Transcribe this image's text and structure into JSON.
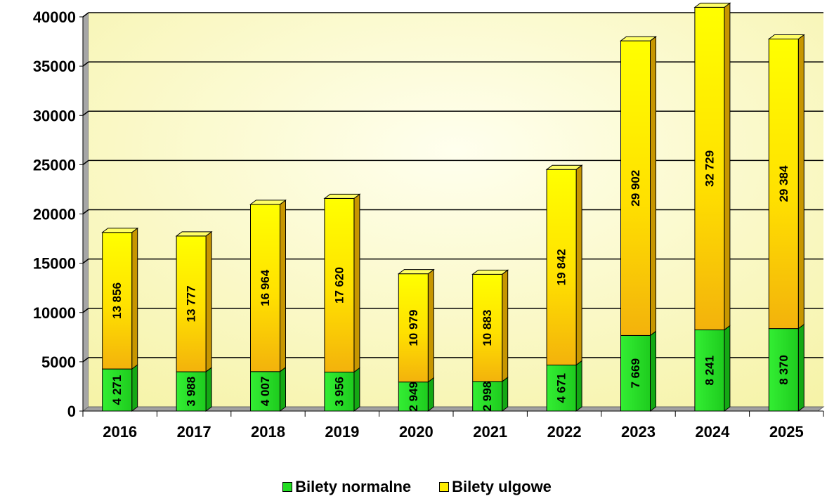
{
  "chart_data": {
    "type": "bar",
    "stacked": true,
    "categories": [
      "2016",
      "2017",
      "2018",
      "2019",
      "2020",
      "2021",
      "2022",
      "2023",
      "2024",
      "2025"
    ],
    "series": [
      {
        "name": "Bilety normalne",
        "color": "#22dd22",
        "values": [
          4271,
          3988,
          4007,
          3956,
          2949,
          2998,
          4671,
          7669,
          8241,
          8370
        ],
        "labels": [
          "4 271",
          "3 988",
          "4 007",
          "3 956",
          "2 949",
          "2 998",
          "4 671",
          "7 669",
          "8 241",
          "8 370"
        ]
      },
      {
        "name": "Bilety ulgowe",
        "color": "#ffee00",
        "values": [
          13856,
          13777,
          16964,
          17620,
          10979,
          10883,
          19842,
          29902,
          32729,
          29384
        ],
        "labels": [
          "13 856",
          "13 777",
          "16 964",
          "17 620",
          "10 979",
          "10 883",
          "19 842",
          "29 902",
          "32 729",
          "29 384"
        ]
      }
    ],
    "ylim": [
      0,
      40000
    ],
    "yticks": [
      "0",
      "5000",
      "10000",
      "15000",
      "20000",
      "25000",
      "30000",
      "35000",
      "40000"
    ],
    "grid": true,
    "legend_position": "bottom"
  }
}
